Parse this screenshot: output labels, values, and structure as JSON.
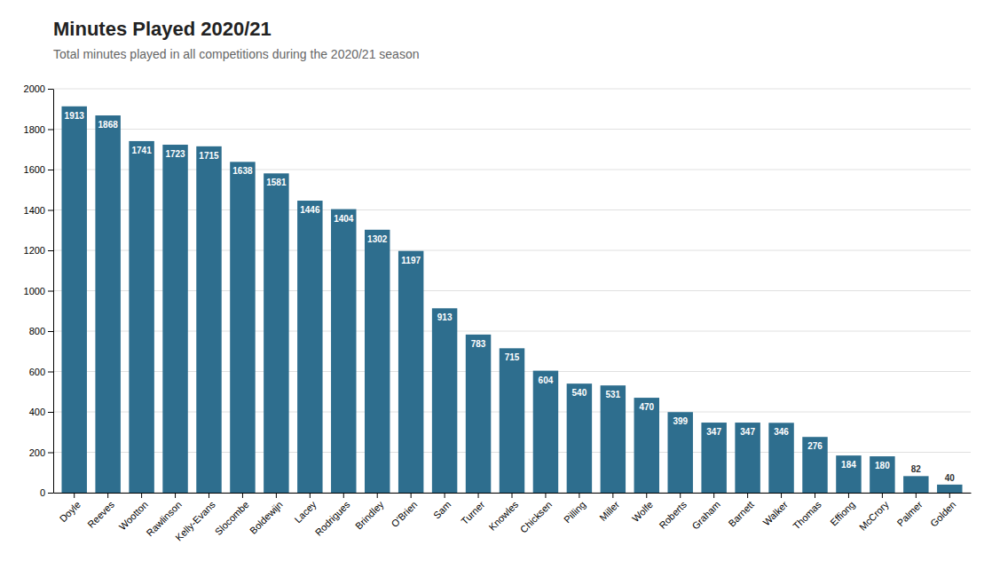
{
  "chart_data": {
    "type": "bar",
    "title": "Minutes Played 2020/21",
    "subtitle": "Total minutes played in all competitions during the 2020/21 season",
    "categories": [
      "Doyle",
      "Reeves",
      "Wootton",
      "Rawlinson",
      "Kelly-Evans",
      "Slocombe",
      "Boldewijn",
      "Lacey",
      "Rodrigues",
      "Brindley",
      "O'Brien",
      "Sam",
      "Turner",
      "Knowles",
      "Chicksen",
      "Pilling",
      "Miller",
      "Wolfe",
      "Roberts",
      "Graham",
      "Barnett",
      "Walker",
      "Thomas",
      "Effiong",
      "McCrory",
      "Palmer",
      "Golden"
    ],
    "values": [
      1913,
      1868,
      1741,
      1723,
      1715,
      1638,
      1581,
      1446,
      1404,
      1302,
      1197,
      913,
      783,
      715,
      604,
      540,
      531,
      470,
      399,
      347,
      347,
      346,
      276,
      184,
      180,
      82,
      40
    ],
    "color": "#2e6e8e",
    "ylim": [
      0,
      2000
    ],
    "yticks": [
      0,
      200,
      400,
      600,
      800,
      1000,
      1200,
      1400,
      1600,
      1800,
      2000
    ],
    "grid": true,
    "data_labels": true
  }
}
